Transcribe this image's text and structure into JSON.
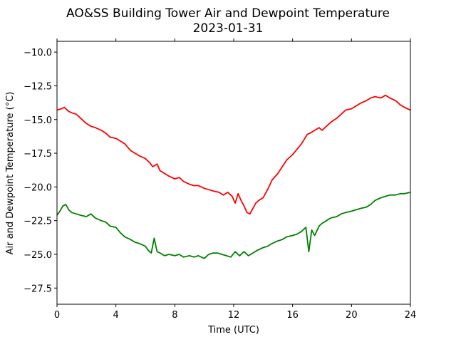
{
  "chart_data": {
    "type": "line",
    "title": "AO&SS Building Tower Air and Dewpoint Temperature",
    "subtitle": "2023-01-31",
    "xlabel": "Time (UTC)",
    "ylabel": "Air and Dewpoint Temperature (°C)",
    "xlim": [
      0,
      24
    ],
    "ylim": [
      -28.7,
      -9.2
    ],
    "xticks": [
      0,
      4,
      8,
      12,
      16,
      20,
      24
    ],
    "yticks": [
      -27.5,
      -25.0,
      -22.5,
      -20.0,
      -17.5,
      -15.0,
      -12.5,
      -10.0
    ],
    "grid": false,
    "series": [
      {
        "color": "#ff0000",
        "x": [
          0,
          0.3,
          0.5,
          0.8,
          1.0,
          1.3,
          1.6,
          2.0,
          2.3,
          2.6,
          3.0,
          3.3,
          3.6,
          4.0,
          4.3,
          4.6,
          5.0,
          5.3,
          5.6,
          6.0,
          6.3,
          6.5,
          6.8,
          7.0,
          7.3,
          7.6,
          8.0,
          8.3,
          8.6,
          9.0,
          9.3,
          9.6,
          10.0,
          10.3,
          10.6,
          11.0,
          11.3,
          11.6,
          11.9,
          12.1,
          12.3,
          12.5,
          12.7,
          12.9,
          13.1,
          13.3,
          13.5,
          13.7,
          14.0,
          14.3,
          14.6,
          15.0,
          15.3,
          15.6,
          16.0,
          16.3,
          16.6,
          17.0,
          17.2,
          17.5,
          17.8,
          18.0,
          18.3,
          18.6,
          19.0,
          19.3,
          19.6,
          20.0,
          20.3,
          20.6,
          21.0,
          21.3,
          21.6,
          22.0,
          22.3,
          22.6,
          23.0,
          23.3,
          23.6,
          24.0
        ],
        "y": [
          -14.3,
          -14.2,
          -14.1,
          -14.4,
          -14.5,
          -14.6,
          -14.9,
          -15.3,
          -15.5,
          -15.6,
          -15.8,
          -16.0,
          -16.3,
          -16.4,
          -16.6,
          -16.8,
          -17.3,
          -17.5,
          -17.7,
          -17.9,
          -18.2,
          -18.5,
          -18.3,
          -18.8,
          -19.0,
          -19.2,
          -19.4,
          -19.3,
          -19.6,
          -19.8,
          -19.9,
          -19.9,
          -20.1,
          -20.2,
          -20.3,
          -20.4,
          -20.6,
          -20.4,
          -20.7,
          -21.2,
          -20.5,
          -21.0,
          -21.4,
          -21.9,
          -22.0,
          -21.6,
          -21.2,
          -21.0,
          -20.8,
          -20.2,
          -19.5,
          -19.0,
          -18.5,
          -18.0,
          -17.6,
          -17.2,
          -16.8,
          -16.1,
          -16.0,
          -15.8,
          -15.6,
          -15.8,
          -15.5,
          -15.2,
          -14.9,
          -14.6,
          -14.3,
          -14.2,
          -14.0,
          -13.8,
          -13.6,
          -13.4,
          -13.3,
          -13.4,
          -13.2,
          -13.4,
          -13.6,
          -13.9,
          -14.1,
          -14.3
        ]
      },
      {
        "color": "#008000",
        "x": [
          0,
          0.2,
          0.4,
          0.6,
          0.8,
          1.0,
          1.3,
          1.6,
          2.0,
          2.3,
          2.6,
          3.0,
          3.3,
          3.6,
          4.0,
          4.3,
          4.6,
          5.0,
          5.3,
          5.6,
          6.0,
          6.2,
          6.4,
          6.6,
          6.8,
          7.0,
          7.3,
          7.6,
          8.0,
          8.3,
          8.6,
          9.0,
          9.3,
          9.6,
          10.0,
          10.3,
          10.6,
          10.9,
          11.2,
          11.5,
          11.8,
          12.1,
          12.4,
          12.7,
          13.0,
          13.3,
          13.6,
          14.0,
          14.3,
          14.6,
          15.0,
          15.3,
          15.6,
          16.0,
          16.3,
          16.6,
          16.9,
          17.1,
          17.3,
          17.5,
          17.8,
          18.0,
          18.3,
          18.6,
          19.0,
          19.3,
          19.6,
          20.0,
          20.3,
          20.6,
          21.0,
          21.3,
          21.6,
          22.0,
          22.3,
          22.6,
          23.0,
          23.3,
          23.6,
          24.0
        ],
        "y": [
          -22.1,
          -21.8,
          -21.4,
          -21.3,
          -21.7,
          -21.9,
          -22.0,
          -22.1,
          -22.2,
          -22.0,
          -22.3,
          -22.5,
          -22.6,
          -22.9,
          -23.0,
          -23.4,
          -23.7,
          -23.9,
          -24.1,
          -24.2,
          -24.4,
          -24.7,
          -24.9,
          -23.8,
          -24.8,
          -24.9,
          -25.1,
          -25.0,
          -25.1,
          -25.0,
          -25.2,
          -25.1,
          -25.2,
          -25.1,
          -25.3,
          -25.0,
          -24.9,
          -24.9,
          -25.0,
          -25.1,
          -25.2,
          -24.8,
          -25.1,
          -24.8,
          -25.1,
          -24.9,
          -24.7,
          -24.5,
          -24.4,
          -24.2,
          -24.0,
          -23.9,
          -23.7,
          -23.6,
          -23.5,
          -23.3,
          -23.0,
          -24.8,
          -23.2,
          -23.6,
          -22.9,
          -22.7,
          -22.5,
          -22.3,
          -22.2,
          -22.0,
          -21.9,
          -21.8,
          -21.7,
          -21.6,
          -21.5,
          -21.3,
          -21.0,
          -20.8,
          -20.7,
          -20.6,
          -20.6,
          -20.5,
          -20.5,
          -20.4
        ]
      }
    ]
  }
}
